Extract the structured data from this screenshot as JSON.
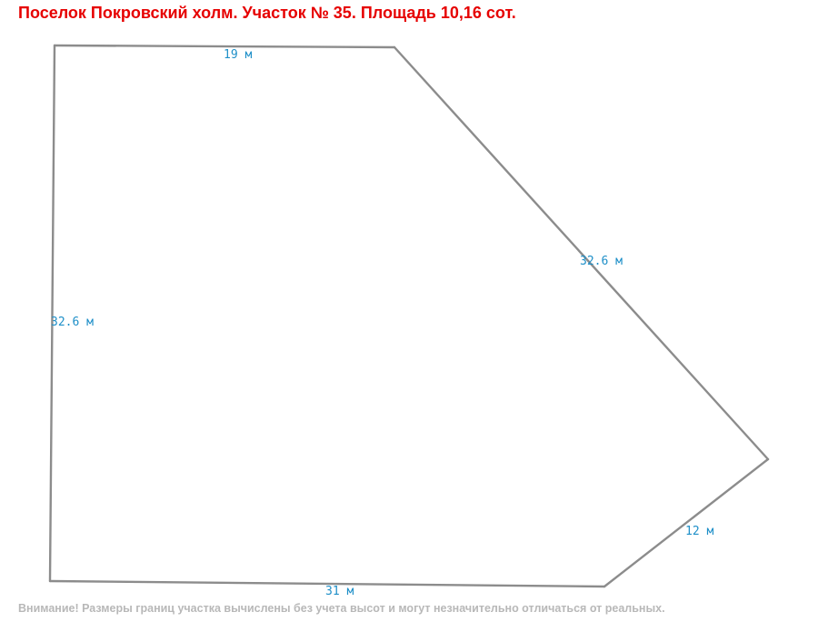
{
  "title": "Поселок Покровский холм. Участок № 35. Площадь 10,16 сот.",
  "plot": {
    "sides": [
      {
        "id": "top",
        "label": "19 м"
      },
      {
        "id": "diagonal",
        "label": "32.6 м"
      },
      {
        "id": "left",
        "label": "32.6 м"
      },
      {
        "id": "short",
        "label": "12 м"
      },
      {
        "id": "bottom",
        "label": "31 м"
      }
    ]
  },
  "colors": {
    "title": "#e60000",
    "boundary": "#8c8c8c",
    "dimension_text": "#1e8fc8",
    "note": "#b8b8b8"
  },
  "note": "Внимание! Размеры границ участка вычислены без учета высот и могут незначительно отличаться от реальных."
}
